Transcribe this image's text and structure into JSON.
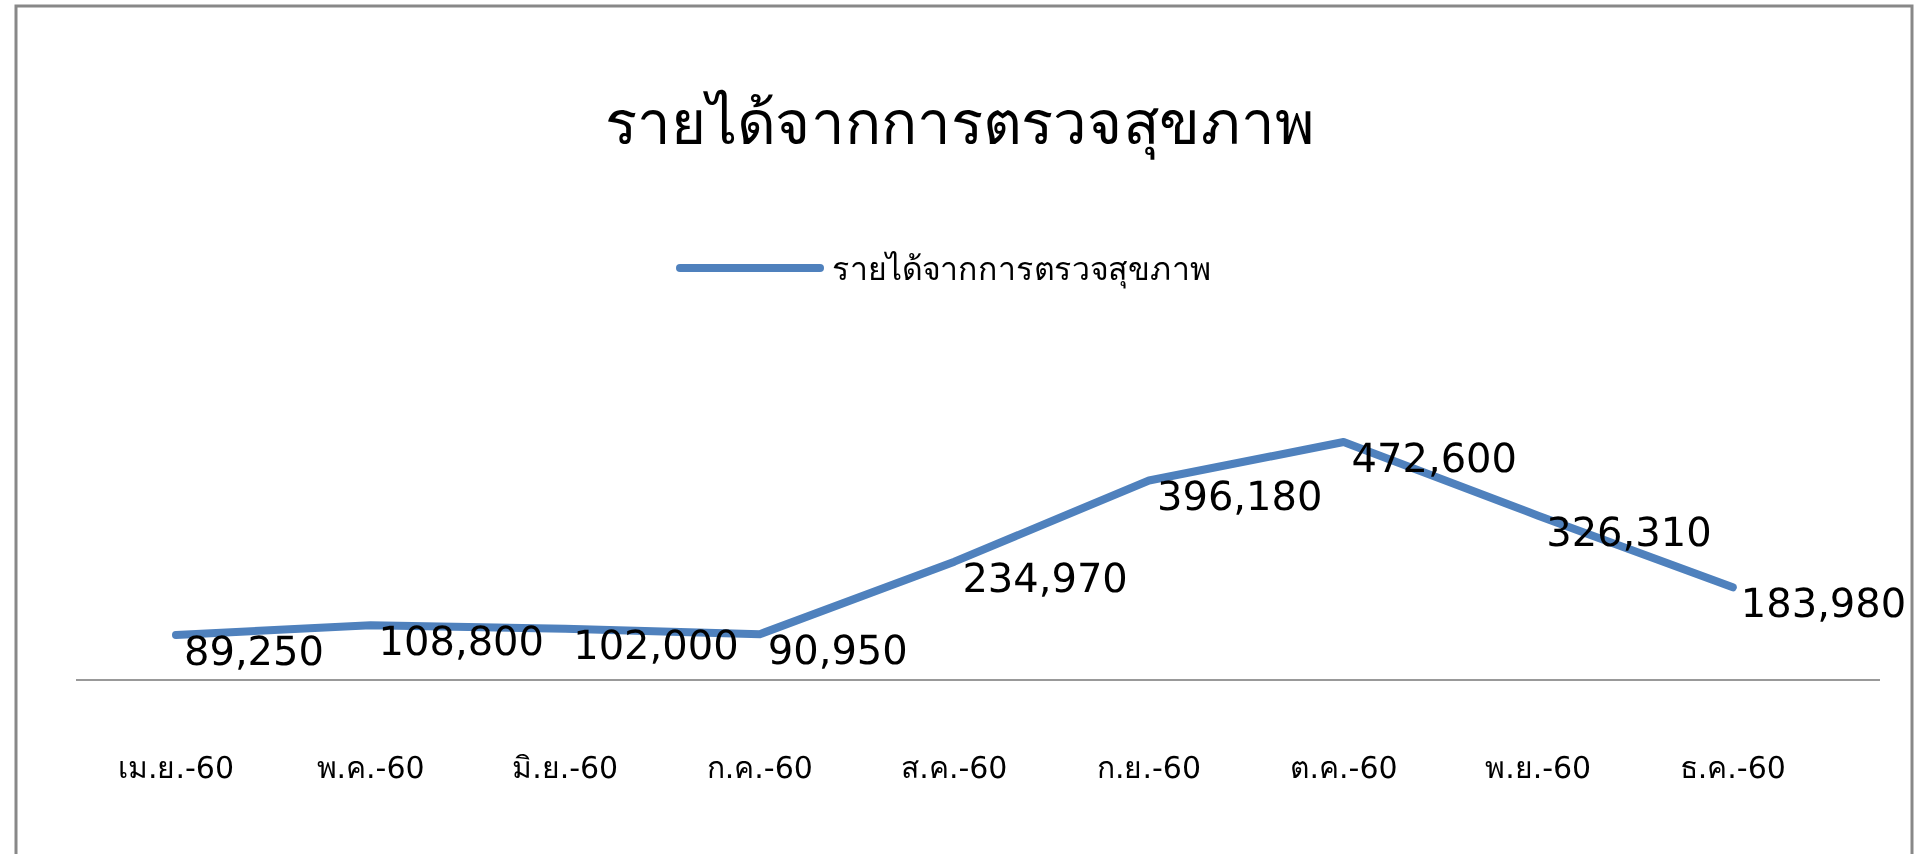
{
  "chart_data": {
    "type": "line",
    "title": "รายได้จากการตรวจสุขภาพ",
    "categories": [
      "เม.ย.-60",
      "พ.ค.-60",
      "มิ.ย.-60",
      "ก.ค.-60",
      "ส.ค.-60",
      "ก.ย.-60",
      "ต.ค.-60",
      "พ.ย.-60",
      "ธ.ค.-60"
    ],
    "series": [
      {
        "name": "รายได้จากการตรวจสุขภาพ",
        "color": "#4f81bd",
        "values": [
          89250,
          108800,
          102000,
          90950,
          234970,
          396180,
          472600,
          326310,
          183980
        ],
        "value_labels": [
          "89,250",
          "108,800",
          "102,000",
          "90,950",
          "234,970",
          "396,180",
          "472,600",
          "326,310",
          "183,980"
        ]
      }
    ],
    "legend": "top",
    "marker": "none",
    "line_style": "solid"
  }
}
